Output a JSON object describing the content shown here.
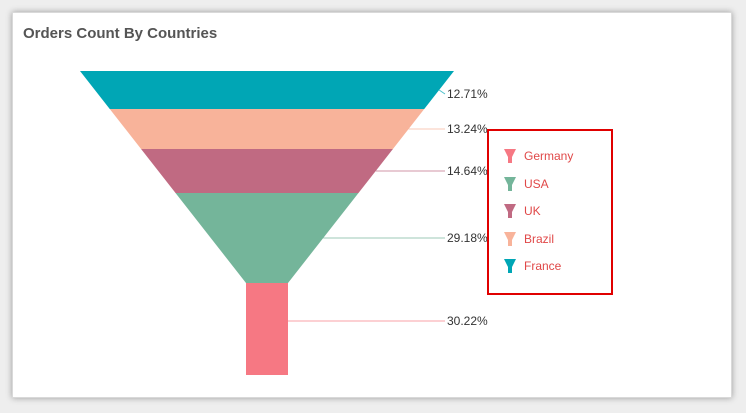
{
  "title": "Orders Count By Countries",
  "chart_data": {
    "type": "funnel",
    "title": "Orders Count By Countries",
    "series": [
      {
        "name": "France",
        "percent": 12.71,
        "label": "12.71%",
        "color": "#00a6b5"
      },
      {
        "name": "Brazil",
        "percent": 13.24,
        "label": "13.24%",
        "color": "#f8b39a"
      },
      {
        "name": "UK",
        "percent": 14.64,
        "label": "14.64%",
        "color": "#c06a82"
      },
      {
        "name": "USA",
        "percent": 29.18,
        "label": "29.18%",
        "color": "#74b59a"
      },
      {
        "name": "Germany",
        "percent": 30.22,
        "label": "30.22%",
        "color": "#f67883"
      }
    ],
    "legend": {
      "placement": "right",
      "items": [
        {
          "label": "Germany",
          "color": "#f67883"
        },
        {
          "label": "USA",
          "color": "#74b59a"
        },
        {
          "label": "UK",
          "color": "#c06a82"
        },
        {
          "label": "Brazil",
          "color": "#f8b39a"
        },
        {
          "label": "France",
          "color": "#00a6b5"
        }
      ]
    }
  }
}
